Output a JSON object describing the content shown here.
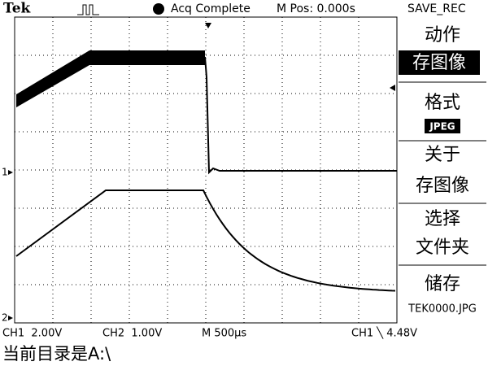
{
  "header": {
    "brand": "Tek",
    "status": "Acq Complete",
    "position": "M Pos: 0.000s",
    "menu_title": "SAVE_REC"
  },
  "menu": [
    {
      "lines": [
        "动作",
        "存图像"
      ]
    },
    {
      "lines": [
        "格式",
        "JPEG"
      ]
    },
    {
      "lines": [
        "关于",
        "存图像"
      ]
    },
    {
      "lines": [
        "选择",
        "文件夹"
      ]
    },
    {
      "lines": [
        "储存",
        "TEK0000.JPG"
      ]
    }
  ],
  "channels": [
    "1",
    "2"
  ],
  "footer": {
    "ch1_scale": "CH1  2.00V",
    "ch2_scale": "CH2  1.00V",
    "timebase": "M 500µs",
    "trigger": "CH1 ╲ 4.48V"
  },
  "directory": "当前目录是A:\\"
}
